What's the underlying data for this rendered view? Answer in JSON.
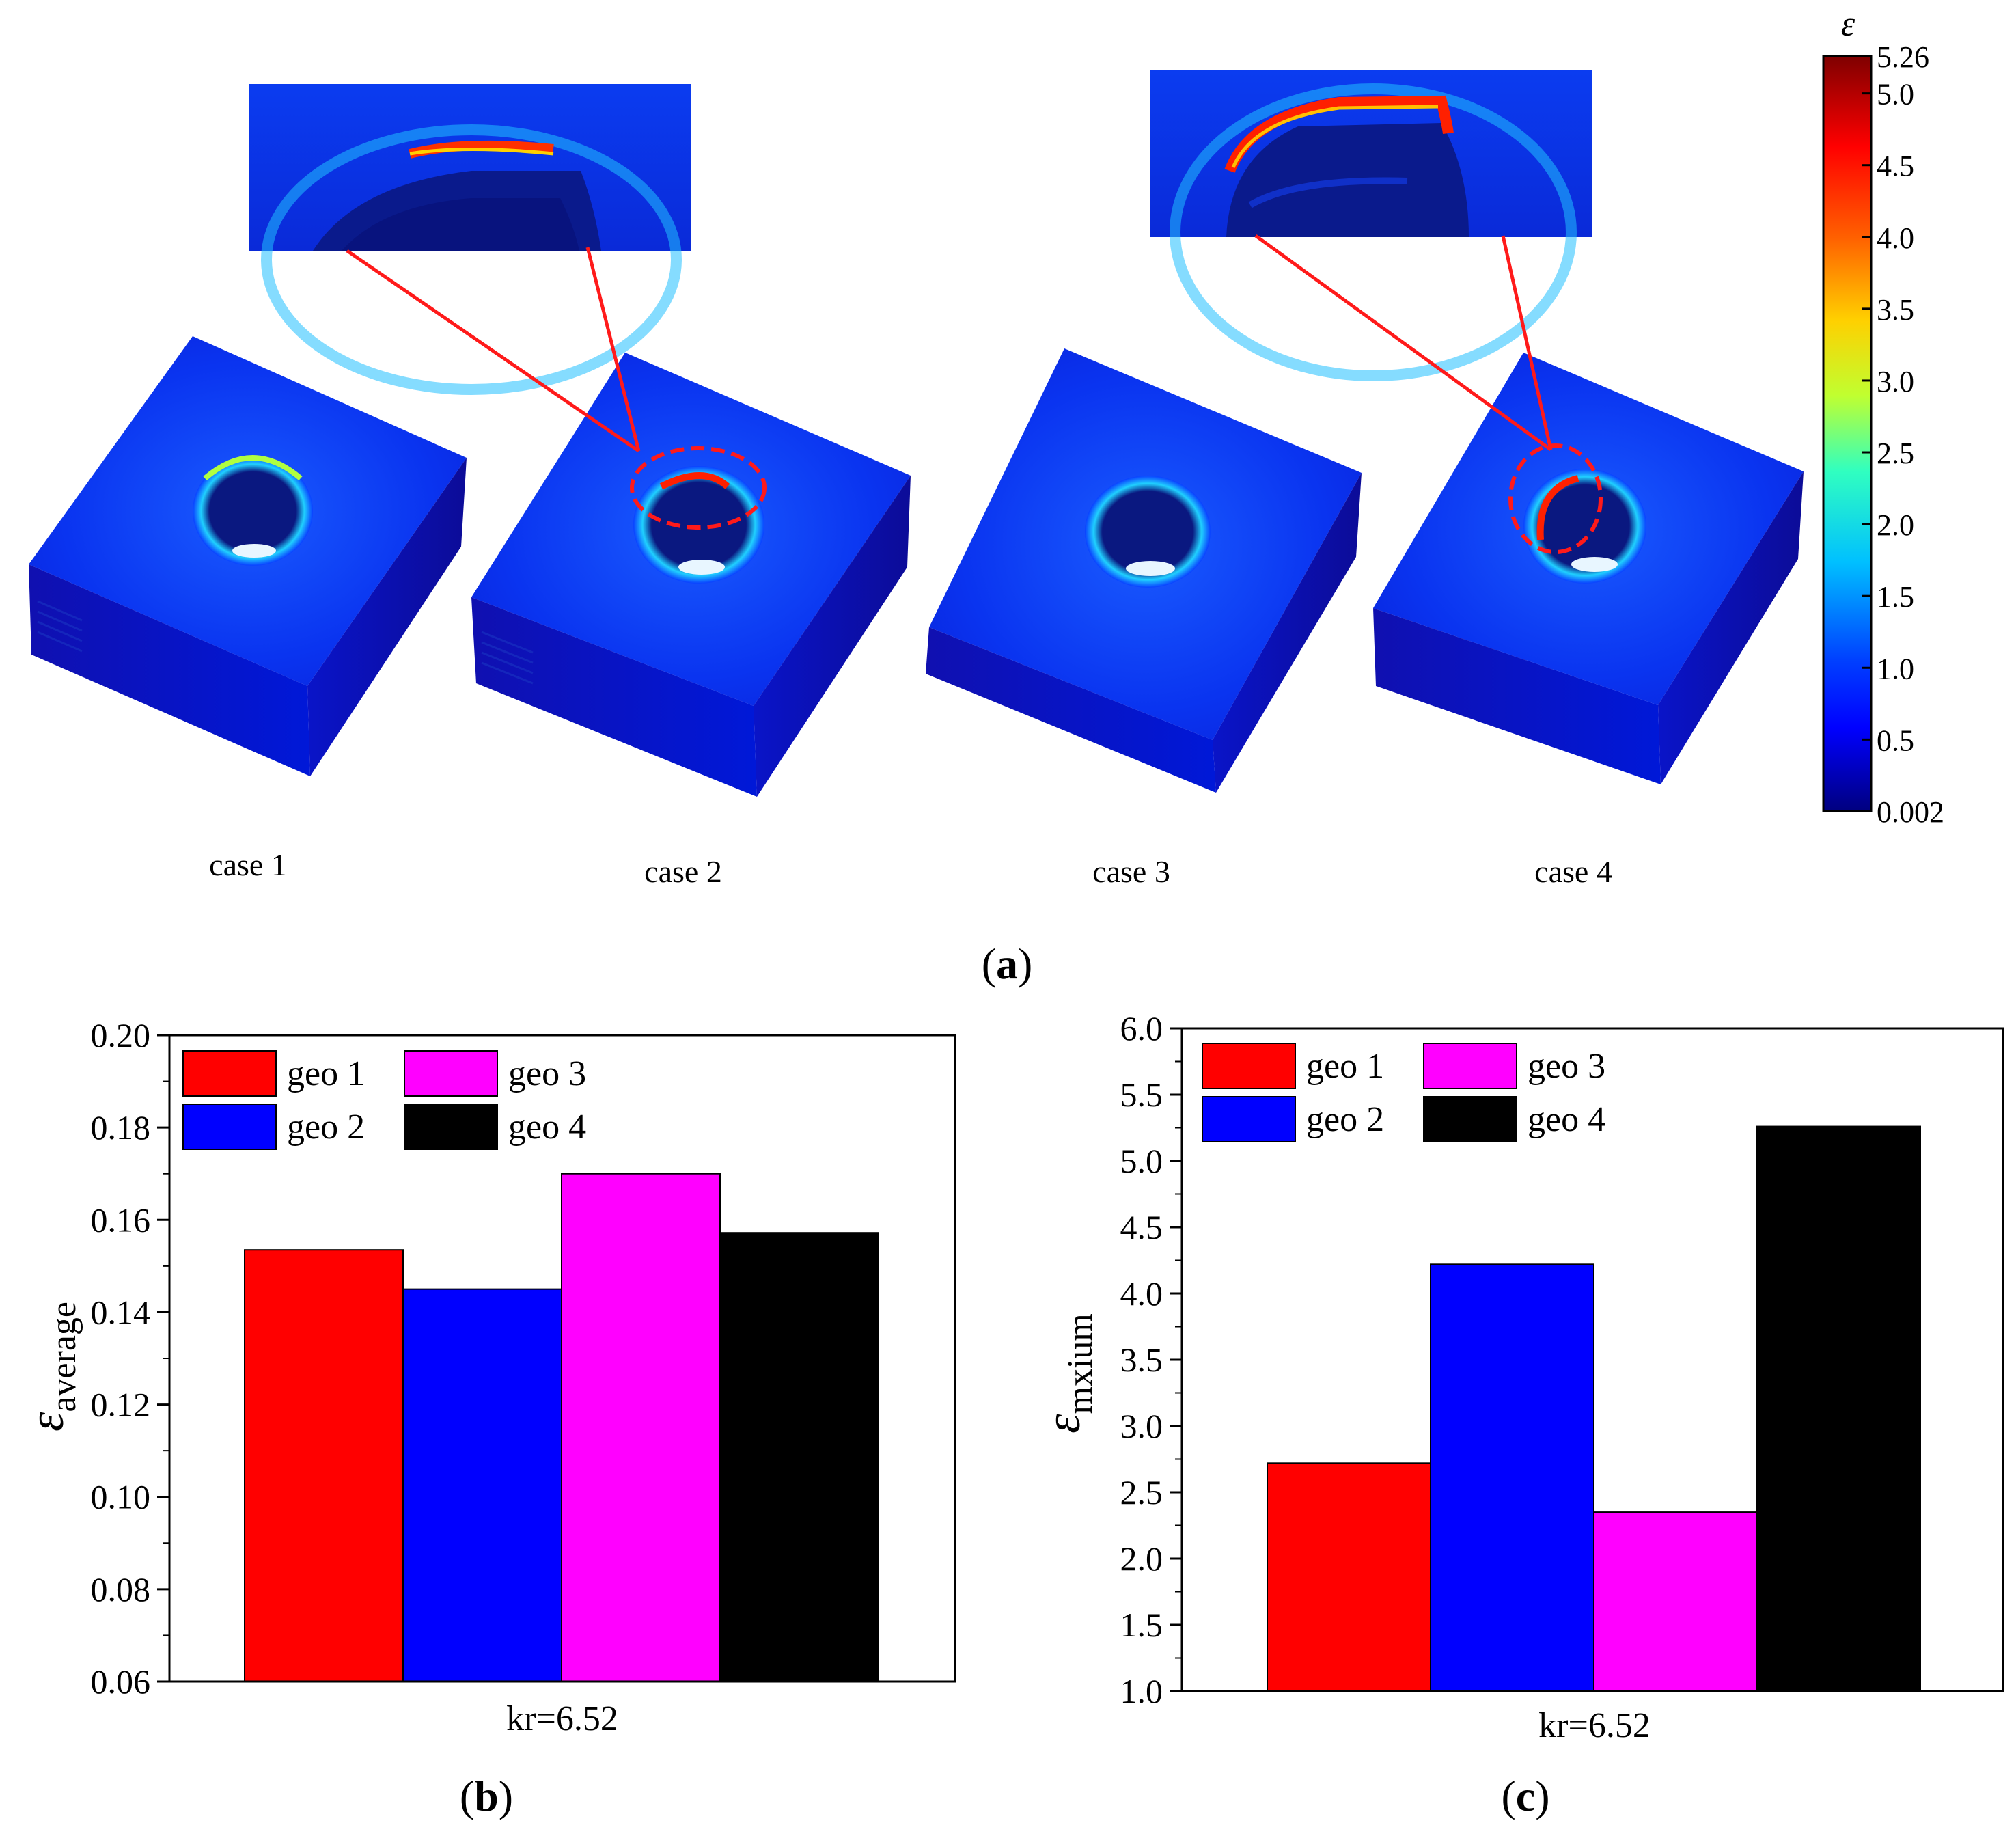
{
  "panel_a": {
    "label": "(a)",
    "cases": [
      "case 1",
      "case 2",
      "case 3",
      "case 4"
    ],
    "colorbar": {
      "symbol": "ε",
      "ticks": [
        "5.26",
        "5.0",
        "4.5",
        "4.0",
        "3.5",
        "3.0",
        "2.5",
        "2.0",
        "1.5",
        "1.0",
        "0.5",
        "0.002"
      ],
      "colors": [
        "#00007f",
        "#0000ff",
        "#007fff",
        "#00ffff",
        "#7fff7f",
        "#ffff00",
        "#ff7f00",
        "#ff0000",
        "#7f0000"
      ]
    },
    "highlight_color": "#ff1a1a"
  },
  "chart_data": [
    {
      "panel": "(b)",
      "type": "bar",
      "ylabel_symbol": "ε",
      "ylabel_subscript": "average",
      "xlabel": "kr=6.52",
      "ylim": [
        0.06,
        0.2
      ],
      "yticks": [
        "0.06",
        "0.08",
        "0.10",
        "0.12",
        "0.14",
        "0.16",
        "0.18",
        "0.20"
      ],
      "series": [
        {
          "name": "geo 1",
          "value": 0.1535,
          "color": "#ff0000"
        },
        {
          "name": "geo 2",
          "value": 0.145,
          "color": "#0000ff"
        },
        {
          "name": "geo 3",
          "value": 0.17,
          "color": "#ff00ff"
        },
        {
          "name": "geo 4",
          "value": 0.1572,
          "color": "#000000"
        }
      ]
    },
    {
      "panel": "(c)",
      "type": "bar",
      "ylabel_symbol": "ε",
      "ylabel_subscript": "mxium",
      "xlabel": "kr=6.52",
      "ylim": [
        1.0,
        6.0
      ],
      "yticks": [
        "1.0",
        "1.5",
        "2.0",
        "2.5",
        "3.0",
        "3.5",
        "4.0",
        "4.5",
        "5.0",
        "5.5",
        "6.0"
      ],
      "series": [
        {
          "name": "geo 1",
          "value": 2.72,
          "color": "#ff0000"
        },
        {
          "name": "geo 2",
          "value": 4.22,
          "color": "#0000ff"
        },
        {
          "name": "geo 3",
          "value": 2.35,
          "color": "#ff00ff"
        },
        {
          "name": "geo 4",
          "value": 5.26,
          "color": "#000000"
        }
      ]
    }
  ]
}
